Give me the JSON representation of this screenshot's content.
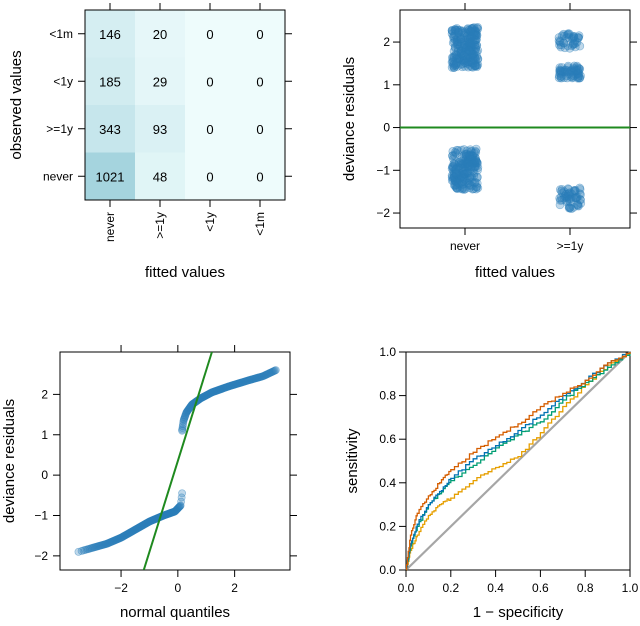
{
  "chart_data": [
    {
      "type": "heatmap",
      "title": "",
      "xlabel": "fitted values",
      "ylabel": "observed values",
      "x_categories": [
        "never",
        ">=1y",
        "<1y",
        "<1m"
      ],
      "y_categories": [
        "<1m",
        "<1y",
        ">=1y",
        "never"
      ],
      "values": [
        [
          146,
          20,
          0,
          0
        ],
        [
          185,
          29,
          0,
          0
        ],
        [
          343,
          93,
          0,
          0
        ],
        [
          1021,
          48,
          0,
          0
        ]
      ],
      "colors": {
        "low": "#eefcfc",
        "high": "#a5d4de"
      }
    },
    {
      "type": "scatter",
      "title": "",
      "xlabel": "fitted values",
      "ylabel": "deviance residuals",
      "x_categories": [
        "never",
        ">=1y"
      ],
      "ylim": [
        -2.35,
        2.75
      ],
      "yticks": [
        -2,
        -1,
        0,
        1,
        2
      ],
      "reference_line": 0,
      "clusters": [
        {
          "category": "never",
          "ymin": 1.4,
          "ymax": 2.35,
          "n": 230
        },
        {
          "category": "never",
          "ymin": -1.45,
          "ymax": -0.5,
          "n": 200
        },
        {
          "category": ">=1y",
          "ymin": 1.15,
          "ymax": 1.45,
          "n": 60
        },
        {
          "category": ">=1y",
          "ymin": 1.85,
          "ymax": 2.2,
          "n": 40
        },
        {
          "category": ">=1y",
          "ymin": -1.9,
          "ymax": -1.4,
          "n": 55
        }
      ],
      "colors": {
        "points": "#2a7db9",
        "line": "#1f8a1f"
      }
    },
    {
      "type": "scatter",
      "title": "",
      "xlabel": "normal quantiles",
      "ylabel": "deviance residuals",
      "xlim": [
        -4.15,
        3.95
      ],
      "ylim": [
        -2.35,
        3.05
      ],
      "xticks": [
        -2,
        0,
        2
      ],
      "yticks": [
        -2,
        -1,
        0,
        1,
        2
      ],
      "segments": [
        {
          "name": "lower",
          "x": [
            -3.5,
            -3.0,
            -2.5,
            -2.0,
            -1.5,
            -1.0,
            -0.5,
            -0.1,
            0.1,
            0.15
          ],
          "y": [
            -1.9,
            -1.8,
            -1.7,
            -1.55,
            -1.35,
            -1.15,
            -1.0,
            -0.9,
            -0.75,
            -0.45
          ]
        },
        {
          "name": "upper",
          "x": [
            0.15,
            0.2,
            0.3,
            0.5,
            0.8,
            1.2,
            1.8,
            2.5,
            3.0,
            3.45
          ],
          "y": [
            1.1,
            1.35,
            1.55,
            1.75,
            1.9,
            2.05,
            2.2,
            2.35,
            2.45,
            2.6
          ]
        }
      ],
      "reference_line": {
        "x": [
          -1.2,
          1.2
        ],
        "y": [
          -2.35,
          3.05
        ]
      },
      "colors": {
        "points": "#2a7db9",
        "line": "#1f8a1f"
      }
    },
    {
      "type": "line",
      "title": "",
      "xlabel": "1 − specificity",
      "ylabel": "sensitivity",
      "xlim": [
        0,
        1
      ],
      "ylim": [
        0,
        1
      ],
      "xticks": [
        0.0,
        0.2,
        0.4,
        0.6,
        0.8,
        1.0
      ],
      "yticks": [
        0.0,
        0.2,
        0.4,
        0.6,
        0.8,
        1.0
      ],
      "series": [
        {
          "name": "orange-red",
          "color": "#d55e00",
          "x": [
            0,
            0.02,
            0.05,
            0.1,
            0.15,
            0.2,
            0.3,
            0.4,
            0.5,
            0.6,
            0.7,
            0.8,
            0.9,
            1.0
          ],
          "y": [
            0,
            0.16,
            0.26,
            0.34,
            0.4,
            0.46,
            0.54,
            0.61,
            0.67,
            0.75,
            0.81,
            0.87,
            0.95,
            1.0
          ]
        },
        {
          "name": "teal",
          "color": "#009e73",
          "x": [
            0,
            0.02,
            0.05,
            0.1,
            0.15,
            0.2,
            0.3,
            0.4,
            0.5,
            0.6,
            0.7,
            0.8,
            0.9,
            1.0
          ],
          "y": [
            0,
            0.11,
            0.2,
            0.3,
            0.35,
            0.41,
            0.48,
            0.56,
            0.62,
            0.68,
            0.78,
            0.86,
            0.93,
            1.0
          ]
        },
        {
          "name": "blue",
          "color": "#0072b2",
          "x": [
            0,
            0.02,
            0.05,
            0.1,
            0.15,
            0.2,
            0.3,
            0.4,
            0.5,
            0.6,
            0.7,
            0.8,
            0.9,
            1.0
          ],
          "y": [
            0,
            0.12,
            0.21,
            0.3,
            0.36,
            0.42,
            0.51,
            0.57,
            0.64,
            0.71,
            0.8,
            0.87,
            0.95,
            1.0
          ]
        },
        {
          "name": "orange",
          "color": "#e69f00",
          "x": [
            0,
            0.02,
            0.05,
            0.1,
            0.15,
            0.2,
            0.3,
            0.4,
            0.5,
            0.6,
            0.7,
            0.8,
            0.9,
            1.0
          ],
          "y": [
            0,
            0.09,
            0.16,
            0.25,
            0.3,
            0.33,
            0.41,
            0.47,
            0.52,
            0.63,
            0.75,
            0.85,
            0.94,
            1.0
          ]
        },
        {
          "name": "reference",
          "color": "#a6a6a6",
          "x": [
            0,
            1
          ],
          "y": [
            0,
            1
          ]
        }
      ]
    }
  ]
}
